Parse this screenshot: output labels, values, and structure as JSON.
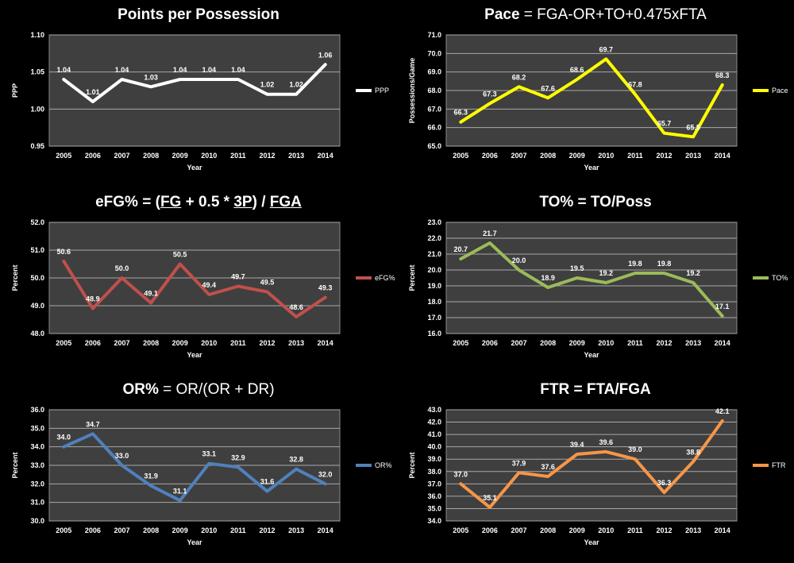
{
  "chart_data": [
    {
      "id": "ppp",
      "type": "line",
      "title_parts": [
        {
          "text": "Points per Possession",
          "bold": true
        }
      ],
      "xlabel": "Year",
      "ylabel": "PPP",
      "categories": [
        "2005",
        "2006",
        "2007",
        "2008",
        "2009",
        "2010",
        "2011",
        "2012",
        "2013",
        "2014"
      ],
      "series": [
        {
          "name": "PPP",
          "color": "#ffffff",
          "values": [
            1.04,
            1.01,
            1.04,
            1.03,
            1.04,
            1.04,
            1.04,
            1.02,
            1.02,
            1.06
          ],
          "labels": [
            "1.04",
            "1.01",
            "1.04",
            "1.03",
            "1.04",
            "1.04",
            "1.04",
            "1.02",
            "1.02",
            "1.06"
          ]
        }
      ],
      "ylim": [
        0.95,
        1.1
      ],
      "yticks": [
        0.95,
        1.0,
        1.05,
        1.1
      ],
      "ytick_labels": [
        "0.95",
        "1.00",
        "1.05",
        "1.10"
      ],
      "grid": true,
      "legend": "right"
    },
    {
      "id": "pace",
      "type": "line",
      "title_parts": [
        {
          "text": "Pace",
          "bold": true
        },
        {
          "text": " = FGA-OR+TO+0.475xFTA",
          "bold": false
        }
      ],
      "xlabel": "Year",
      "ylabel": "Possessions/Game",
      "categories": [
        "2005",
        "2006",
        "2007",
        "2008",
        "2009",
        "2010",
        "2011",
        "2012",
        "2013",
        "2014"
      ],
      "series": [
        {
          "name": "Pace",
          "color": "#ffff00",
          "values": [
            66.3,
            67.3,
            68.2,
            67.6,
            68.6,
            69.7,
            67.8,
            65.7,
            65.5,
            68.3
          ],
          "labels": [
            "66.3",
            "67.3",
            "68.2",
            "67.6",
            "68.6",
            "69.7",
            "67.8",
            "65.7",
            "65.5",
            "68.3"
          ]
        }
      ],
      "ylim": [
        65.0,
        71.0
      ],
      "yticks": [
        65,
        66,
        67,
        68,
        69,
        70,
        71
      ],
      "ytick_labels": [
        "65.0",
        "66.0",
        "67.0",
        "68.0",
        "69.0",
        "70.0",
        "71.0"
      ],
      "grid": true,
      "legend": "right"
    },
    {
      "id": "efg",
      "type": "line",
      "title_parts": [
        {
          "text": "eFG% = (",
          "bold": true
        },
        {
          "text": "FG",
          "bold": true,
          "underline": true
        },
        {
          "text": " + 0.5 * ",
          "bold": true
        },
        {
          "text": "3P",
          "bold": true,
          "underline": true
        },
        {
          "text": ") / ",
          "bold": true
        },
        {
          "text": "FGA",
          "bold": true,
          "underline": true
        }
      ],
      "xlabel": "Year",
      "ylabel": "Percent",
      "categories": [
        "2005",
        "2006",
        "2007",
        "2008",
        "2009",
        "2010",
        "2011",
        "2012",
        "2013",
        "2014"
      ],
      "series": [
        {
          "name": "eFG%",
          "color": "#c0504d",
          "values": [
            50.6,
            48.9,
            50.0,
            49.1,
            50.5,
            49.4,
            49.7,
            49.5,
            48.6,
            49.3
          ],
          "labels": [
            "50.6",
            "48.9",
            "50.0",
            "49.1",
            "50.5",
            "49.4",
            "49.7",
            "49.5",
            "48.6",
            "49.3"
          ]
        }
      ],
      "ylim": [
        48.0,
        52.0
      ],
      "yticks": [
        48,
        49,
        50,
        51,
        52
      ],
      "ytick_labels": [
        "48.0",
        "49.0",
        "50.0",
        "51.0",
        "52.0"
      ],
      "grid": true,
      "legend": "right"
    },
    {
      "id": "to",
      "type": "line",
      "title_parts": [
        {
          "text": "TO% = TO/Poss",
          "bold": true
        }
      ],
      "xlabel": "Year",
      "ylabel": "Percent",
      "categories": [
        "2005",
        "2006",
        "2007",
        "2008",
        "2009",
        "2010",
        "2011",
        "2012",
        "2013",
        "2014"
      ],
      "series": [
        {
          "name": "TO%",
          "color": "#9bbb59",
          "values": [
            20.7,
            21.7,
            20.0,
            18.9,
            19.5,
            19.2,
            19.8,
            19.8,
            19.2,
            17.1
          ],
          "labels": [
            "20.7",
            "21.7",
            "20.0",
            "18.9",
            "19.5",
            "19.2",
            "19.8",
            "19.8",
            "19.2",
            "17.1"
          ]
        }
      ],
      "ylim": [
        16.0,
        23.0
      ],
      "yticks": [
        16,
        17,
        18,
        19,
        20,
        21,
        22,
        23
      ],
      "ytick_labels": [
        "16.0",
        "17.0",
        "18.0",
        "19.0",
        "20.0",
        "21.0",
        "22.0",
        "23.0"
      ],
      "grid": true,
      "legend": "right"
    },
    {
      "id": "or",
      "type": "line",
      "title_parts": [
        {
          "text": "OR%",
          "bold": true
        },
        {
          "text": " = OR/(OR + DR)",
          "bold": false
        }
      ],
      "xlabel": "Year",
      "ylabel": "Percent",
      "categories": [
        "2005",
        "2006",
        "2007",
        "2008",
        "2009",
        "2010",
        "2011",
        "2012",
        "2013",
        "2014"
      ],
      "series": [
        {
          "name": "OR%",
          "color": "#4f81bd",
          "values": [
            34.0,
            34.7,
            33.0,
            31.9,
            31.1,
            33.1,
            32.9,
            31.6,
            32.8,
            32.0
          ],
          "labels": [
            "34.0",
            "34.7",
            "33.0",
            "31.9",
            "31.1",
            "33.1",
            "32.9",
            "31.6",
            "32.8",
            "32.0"
          ]
        }
      ],
      "ylim": [
        30.0,
        36.0
      ],
      "yticks": [
        30,
        31,
        32,
        33,
        34,
        35,
        36
      ],
      "ytick_labels": [
        "30.0",
        "31.0",
        "32.0",
        "33.0",
        "34.0",
        "35.0",
        "36.0"
      ],
      "grid": true,
      "legend": "right"
    },
    {
      "id": "ftr",
      "type": "line",
      "title_parts": [
        {
          "text": "FTR = FTA/FGA",
          "bold": true
        }
      ],
      "xlabel": "Year",
      "ylabel": "Percent",
      "categories": [
        "2005",
        "2006",
        "2007",
        "2008",
        "2009",
        "2010",
        "2011",
        "2012",
        "2013",
        "2014"
      ],
      "series": [
        {
          "name": "FTR",
          "color": "#f79646",
          "values": [
            37.0,
            35.1,
            37.9,
            37.6,
            39.4,
            39.6,
            39.0,
            36.3,
            38.8,
            42.1
          ],
          "labels": [
            "37.0",
            "35.1",
            "37.9",
            "37.6",
            "39.4",
            "39.6",
            "39.0",
            "36.3",
            "38.8",
            "42.1"
          ]
        }
      ],
      "ylim": [
        34.0,
        43.0
      ],
      "yticks": [
        34,
        35,
        36,
        37,
        38,
        39,
        40,
        41,
        42,
        43
      ],
      "ytick_labels": [
        "34.0",
        "35.0",
        "36.0",
        "37.0",
        "38.0",
        "39.0",
        "40.0",
        "41.0",
        "42.0",
        "43.0"
      ],
      "grid": true,
      "legend": "right"
    }
  ]
}
